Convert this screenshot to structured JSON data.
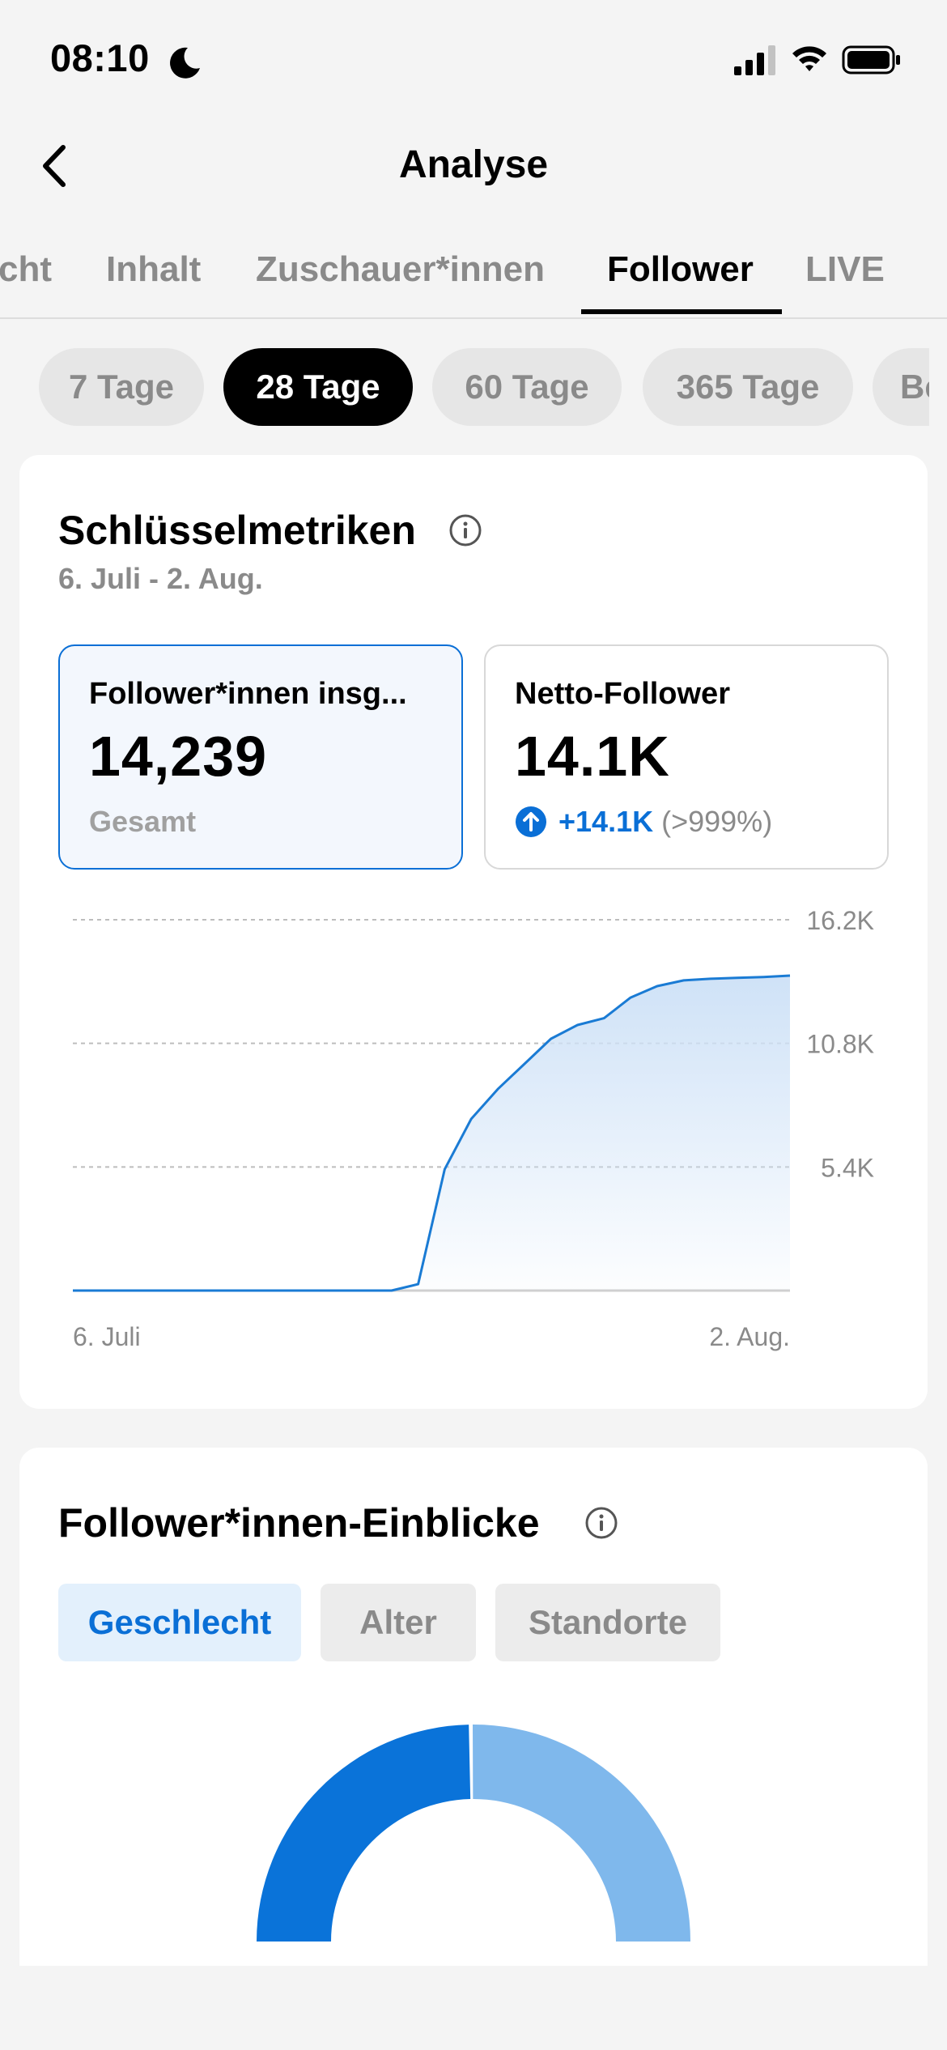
{
  "status_bar": {
    "time": "08:10"
  },
  "nav": {
    "title": "Analyse"
  },
  "tabs": [
    {
      "label": "Übersicht",
      "visible_label": "cht",
      "active": false
    },
    {
      "label": "Inhalt",
      "active": false
    },
    {
      "label": "Zuschauer*innen",
      "active": false
    },
    {
      "label": "Follower",
      "active": true
    },
    {
      "label": "LIVE",
      "active": false
    }
  ],
  "ranges": [
    {
      "label": "7 Tage",
      "active": false
    },
    {
      "label": "28 Tage",
      "active": true
    },
    {
      "label": "60 Tage",
      "active": false
    },
    {
      "label": "365 Tage",
      "active": false
    },
    {
      "label": "Be",
      "active": false
    }
  ],
  "metrics_section": {
    "title": "Schlüsselmetriken",
    "date_range": "6. Juli - 2. Aug.",
    "total": {
      "label": "Follower*innen insg...",
      "value": "14,239",
      "sub": "Gesamt"
    },
    "net": {
      "label": "Netto-Follower",
      "value": "14.1K",
      "change": "+14.1K",
      "change_pct": "(>999%)"
    }
  },
  "chart_data": {
    "type": "area",
    "x_labels": [
      "6. Juli",
      "2. Aug."
    ],
    "y_ticks": [
      "16.2K",
      "10.8K",
      "5.4K"
    ],
    "y_tick_values": [
      16200,
      10800,
      5400
    ],
    "ylim": [
      0,
      16200
    ],
    "grid": true,
    "series": [
      {
        "values": [
          0,
          0,
          0,
          0,
          0,
          0,
          0,
          0,
          0,
          0,
          0,
          0,
          0,
          280,
          5300,
          7500,
          8800,
          9900,
          11000,
          11600,
          11900,
          12800,
          13300,
          13550,
          13620,
          13660,
          13700,
          13760
        ]
      }
    ],
    "colors": {
      "line": "#1a7bd4",
      "fill_top": "#cfe2f7",
      "grid": "#bdbdbd"
    }
  },
  "insights_section": {
    "title": "Follower*innen-Einblicke",
    "segments": [
      {
        "label": "Geschlecht",
        "active": true
      },
      {
        "label": "Alter",
        "active": false
      },
      {
        "label": "Standorte",
        "active": false
      }
    ],
    "gender_split": {
      "values": [
        49.5,
        50.5
      ],
      "colors": [
        "#0a73d9",
        "#7fb8ec"
      ]
    }
  },
  "colors": {
    "accent": "#0a6fd6",
    "background": "#f4f4f4"
  }
}
